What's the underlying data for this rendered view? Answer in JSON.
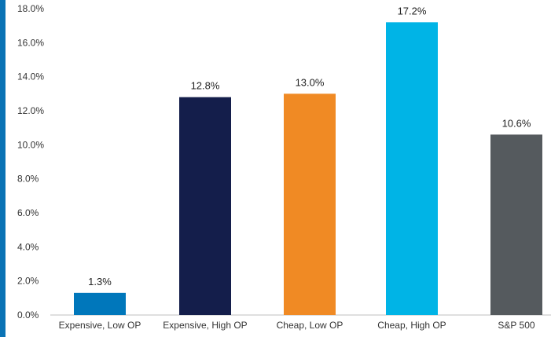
{
  "chart_data": {
    "type": "bar",
    "categories": [
      "Expensive, Low OP",
      "Expensive, High OP",
      "Cheap, Low OP",
      "Cheap, High OP",
      "S&P 500"
    ],
    "values": [
      1.3,
      12.8,
      13.0,
      17.2,
      10.6
    ],
    "value_labels": [
      "1.3%",
      "12.8%",
      "13.0%",
      "17.2%",
      "10.6%"
    ],
    "colors": [
      "#0077bb",
      "#141e4b",
      "#f08a24",
      "#00b4e6",
      "#555a5e"
    ],
    "accent_bar_color": "#0a73b5",
    "ylim": [
      0,
      18
    ],
    "yticks": [
      0,
      2,
      4,
      6,
      8,
      10,
      12,
      14,
      16,
      18
    ],
    "ytick_labels": [
      "0.0%",
      "2.0%",
      "4.0%",
      "6.0%",
      "8.0%",
      "10.0%",
      "12.0%",
      "14.0%",
      "16.0%",
      "18.0%"
    ],
    "grid": false,
    "title": "",
    "xlabel": "",
    "ylabel": ""
  }
}
